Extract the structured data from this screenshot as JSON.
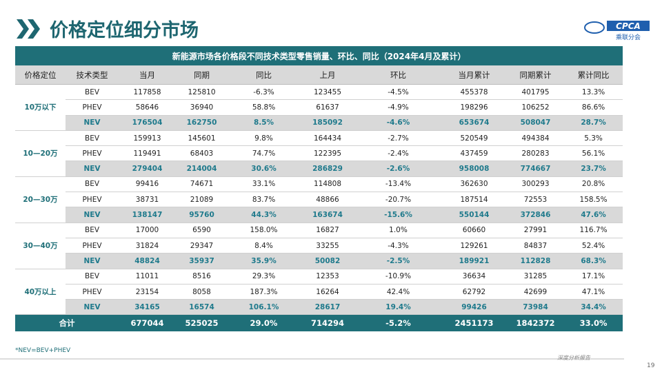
{
  "header": {
    "title": "价格定位细分市场",
    "logo_text": "CPCA",
    "logo_cn": "乘联分会"
  },
  "table": {
    "title": "新能源市场各价格段不同技术类型零售销量、环比、同比（2024年4月及累计）",
    "columns": [
      "价格定位",
      "技术类型",
      "当月",
      "同期",
      "同比",
      "上月",
      "环比",
      "当月累计",
      "同期累计",
      "累计同比"
    ],
    "groups": [
      {
        "label": "10万以下",
        "rows": [
          [
            "BEV",
            "117858",
            "125810",
            "-6.3%",
            "123455",
            "-4.5%",
            "455378",
            "401795",
            "13.3%"
          ],
          [
            "PHEV",
            "58646",
            "36940",
            "58.8%",
            "61637",
            "-4.9%",
            "198296",
            "106252",
            "86.6%"
          ],
          [
            "NEV",
            "176504",
            "162750",
            "8.5%",
            "185092",
            "-4.6%",
            "653674",
            "508047",
            "28.7%"
          ]
        ]
      },
      {
        "label": "10—20万",
        "rows": [
          [
            "BEV",
            "159913",
            "145601",
            "9.8%",
            "164434",
            "-2.7%",
            "520549",
            "494384",
            "5.3%"
          ],
          [
            "PHEV",
            "119491",
            "68403",
            "74.7%",
            "122395",
            "-2.4%",
            "437459",
            "280283",
            "56.1%"
          ],
          [
            "NEV",
            "279404",
            "214004",
            "30.6%",
            "286829",
            "-2.6%",
            "958008",
            "774667",
            "23.7%"
          ]
        ]
      },
      {
        "label": "20—30万",
        "rows": [
          [
            "BEV",
            "99416",
            "74671",
            "33.1%",
            "114808",
            "-13.4%",
            "362630",
            "300293",
            "20.8%"
          ],
          [
            "PHEV",
            "38731",
            "21089",
            "83.7%",
            "48866",
            "-20.7%",
            "187514",
            "72553",
            "158.5%"
          ],
          [
            "NEV",
            "138147",
            "95760",
            "44.3%",
            "163674",
            "-15.6%",
            "550144",
            "372846",
            "47.6%"
          ]
        ]
      },
      {
        "label": "30—40万",
        "rows": [
          [
            "BEV",
            "17000",
            "6590",
            "158.0%",
            "16827",
            "1.0%",
            "60660",
            "27991",
            "116.7%"
          ],
          [
            "PHEV",
            "31824",
            "29347",
            "8.4%",
            "33255",
            "-4.3%",
            "129261",
            "84837",
            "52.4%"
          ],
          [
            "NEV",
            "48824",
            "35937",
            "35.9%",
            "50082",
            "-2.5%",
            "189921",
            "112828",
            "68.3%"
          ]
        ]
      },
      {
        "label": "40万以上",
        "rows": [
          [
            "BEV",
            "11011",
            "8516",
            "29.3%",
            "12353",
            "-10.9%",
            "36634",
            "31285",
            "17.1%"
          ],
          [
            "PHEV",
            "23154",
            "8058",
            "187.3%",
            "16264",
            "42.4%",
            "62792",
            "42699",
            "47.1%"
          ],
          [
            "NEV",
            "34165",
            "16574",
            "106.1%",
            "28617",
            "19.4%",
            "99426",
            "73984",
            "34.4%"
          ]
        ]
      }
    ],
    "total": [
      "合计",
      "677044",
      "525025",
      "29.0%",
      "714294",
      "-5.2%",
      "2451173",
      "1842372",
      "33.0%"
    ]
  },
  "footer": {
    "note": "*NEV=BEV+PHEV",
    "report": "深度分析报告",
    "page": "19"
  }
}
